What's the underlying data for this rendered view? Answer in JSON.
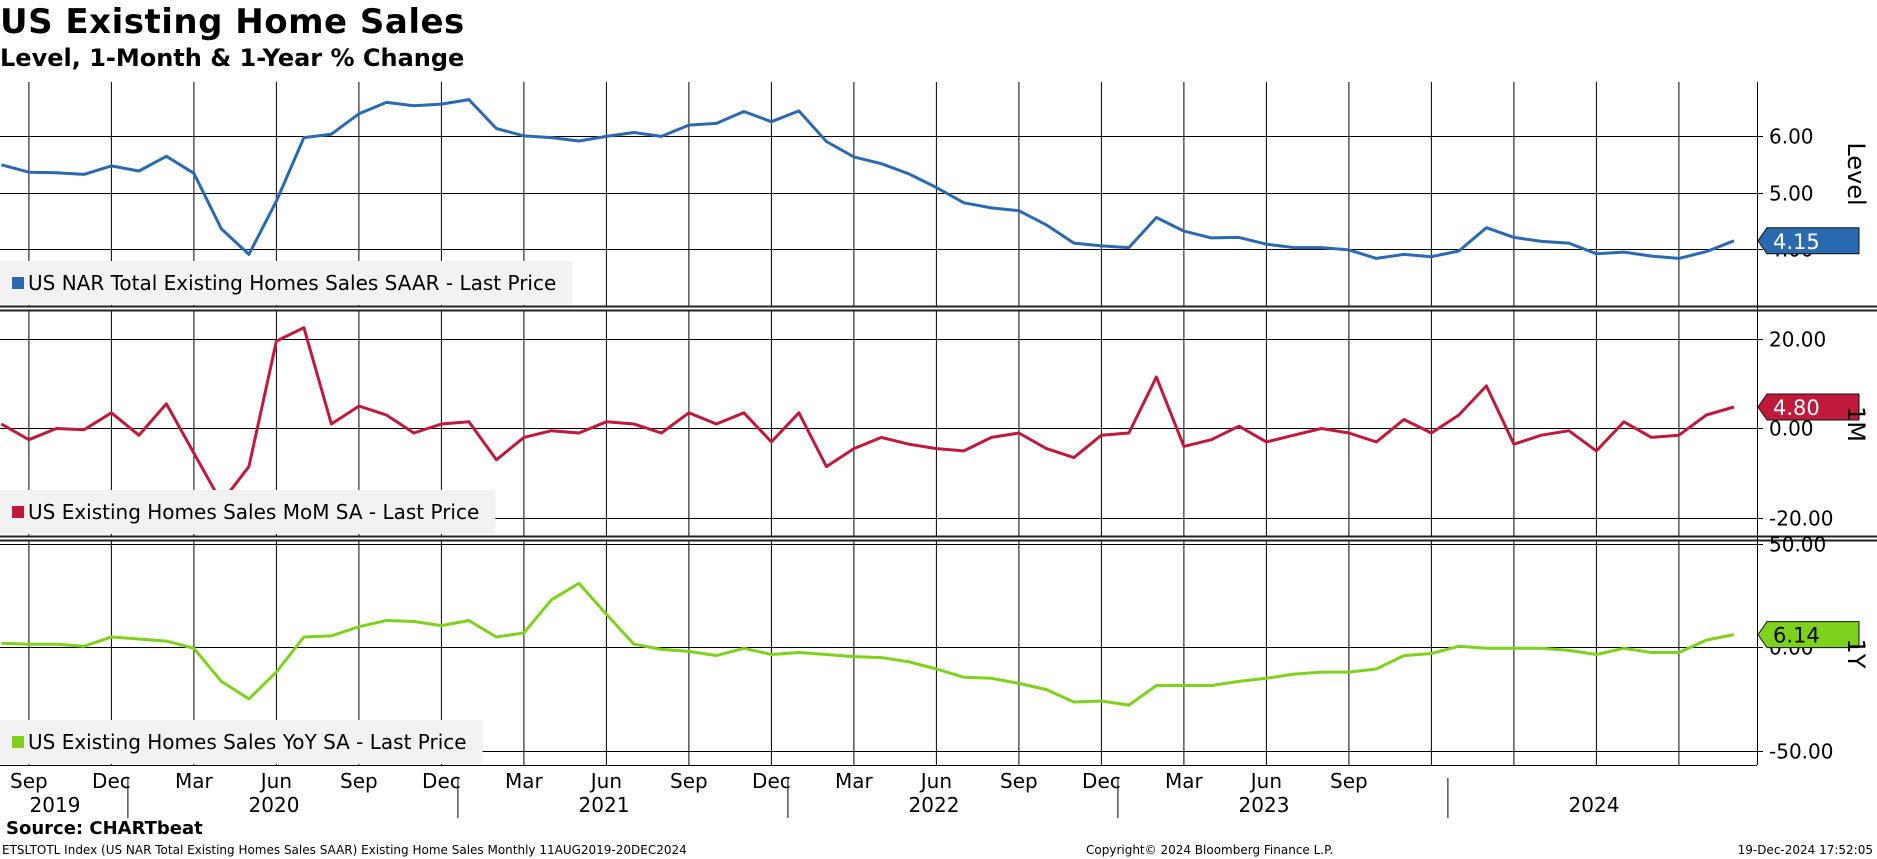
{
  "title": "US Existing Home Sales",
  "subtitle": "Level, 1-Month & 1-Year % Change",
  "source": "Source: CHARTbeat",
  "footer": {
    "left": "ETSLTOTL Index (US NAR Total Existing Homes Sales SAAR) Existing Home Sales  Monthly 11AUG2019-20DEC2024",
    "center": "Copyright© 2024 Bloomberg Finance L.P.",
    "right": "19-Dec-2024 17:52:05"
  },
  "chart_data": {
    "type": "line",
    "x_axis": {
      "start_month": "2019-08",
      "month_labels": [
        "Sep",
        "Dec",
        "Mar",
        "Jun",
        "Sep",
        "Dec",
        "Mar",
        "Jun",
        "Sep",
        "Dec",
        "Mar",
        "Jun",
        "Sep",
        "Dec",
        "Mar",
        "Jun",
        "Sep"
      ],
      "year_labels": [
        "2019",
        "2020",
        "2021",
        "2022",
        "2023",
        "2024"
      ]
    },
    "panels": [
      {
        "id": "level",
        "axis_label": "Level",
        "ylim": [
          3.0,
          6.95
        ],
        "ticks": [
          6.0,
          5.0,
          4.0
        ],
        "tick_labels": [
          "6.00",
          "5.00",
          "4.00"
        ],
        "color": "#2a6ab1",
        "last_value_label": "4.15",
        "series": [
          {
            "name": "US NAR Total Existing Homes Sales SAAR - Last Price",
            "values": [
              5.49,
              5.36,
              5.35,
              5.32,
              5.47,
              5.38,
              5.64,
              5.34,
              4.36,
              3.91,
              4.85,
              5.97,
              6.03,
              6.39,
              6.59,
              6.53,
              6.56,
              6.64,
              6.13,
              6.0,
              5.97,
              5.91,
              5.99,
              6.06,
              5.99,
              6.19,
              6.22,
              6.43,
              6.25,
              6.44,
              5.9,
              5.63,
              5.51,
              5.33,
              5.09,
              4.82,
              4.73,
              4.68,
              4.43,
              4.11,
              4.06,
              4.03,
              4.56,
              4.32,
              4.2,
              4.21,
              4.09,
              4.03,
              4.03,
              3.99,
              3.84,
              3.91,
              3.87,
              3.97,
              4.38,
              4.21,
              4.14,
              4.11,
              3.92,
              3.95,
              3.88,
              3.84,
              3.96,
              4.15
            ]
          }
        ]
      },
      {
        "id": "mom",
        "axis_label": "1M",
        "ylim": [
          -24,
          26
        ],
        "ticks": [
          20,
          0,
          -20
        ],
        "tick_labels": [
          "20.00",
          "0.00",
          "-20.00"
        ],
        "color": "#c0193a",
        "last_value_label": "4.80",
        "series": [
          {
            "name": "US Existing Homes Sales MoM SA - Last Price",
            "values": [
              1.0,
              -2.5,
              0.0,
              -0.3,
              3.5,
              -1.5,
              5.5,
              -5.5,
              -16.5,
              -8.5,
              19.5,
              22.5,
              1.0,
              5.0,
              3.0,
              -1.0,
              1.0,
              1.5,
              -7.0,
              -2.0,
              -0.5,
              -1.0,
              1.5,
              1.0,
              -1.0,
              3.5,
              1.0,
              3.5,
              -3.0,
              3.5,
              -8.5,
              -4.5,
              -2.0,
              -3.5,
              -4.5,
              -5.0,
              -2.0,
              -1.0,
              -4.5,
              -6.5,
              -1.5,
              -1.0,
              11.5,
              -4.0,
              -2.5,
              0.5,
              -3.0,
              -1.5,
              0.0,
              -1.0,
              -3.0,
              2.0,
              -1.0,
              3.0,
              9.5,
              -3.5,
              -1.5,
              -0.5,
              -5.0,
              1.5,
              -2.0,
              -1.5,
              3.0,
              4.8
            ]
          }
        ]
      },
      {
        "id": "yoy",
        "axis_label": "1Y",
        "ylim": [
          -57,
          51
        ],
        "ticks": [
          50,
          0,
          -50
        ],
        "tick_labels": [
          "50.00",
          "0.00",
          "-50.00"
        ],
        "color": "#7dd31c",
        "last_value_label": "6.14",
        "series": [
          {
            "name": "US Existing Homes Sales YoY SA - Last Price",
            "values": [
              2.0,
              1.5,
              1.5,
              0.5,
              5.0,
              4.0,
              3.0,
              -0.5,
              -16.5,
              -25.0,
              -12.0,
              5.0,
              5.5,
              10.0,
              13.0,
              12.5,
              10.5,
              13.0,
              5.0,
              7.0,
              23.0,
              31.0,
              16.0,
              1.5,
              -1.0,
              -2.0,
              -4.0,
              -0.5,
              -3.5,
              -2.5,
              -3.5,
              -4.5,
              -5.0,
              -7.0,
              -10.5,
              -14.5,
              -15.0,
              -17.5,
              -20.5,
              -26.5,
              -26.0,
              -28.0,
              -18.5,
              -18.5,
              -18.5,
              -16.5,
              -15.0,
              -13.0,
              -12.0,
              -12.0,
              -10.5,
              -4.0,
              -3.0,
              0.5,
              -0.5,
              -0.5,
              -0.5,
              -1.5,
              -3.5,
              -0.5,
              -2.5,
              -2.5,
              3.5,
              6.14
            ]
          }
        ]
      }
    ]
  }
}
